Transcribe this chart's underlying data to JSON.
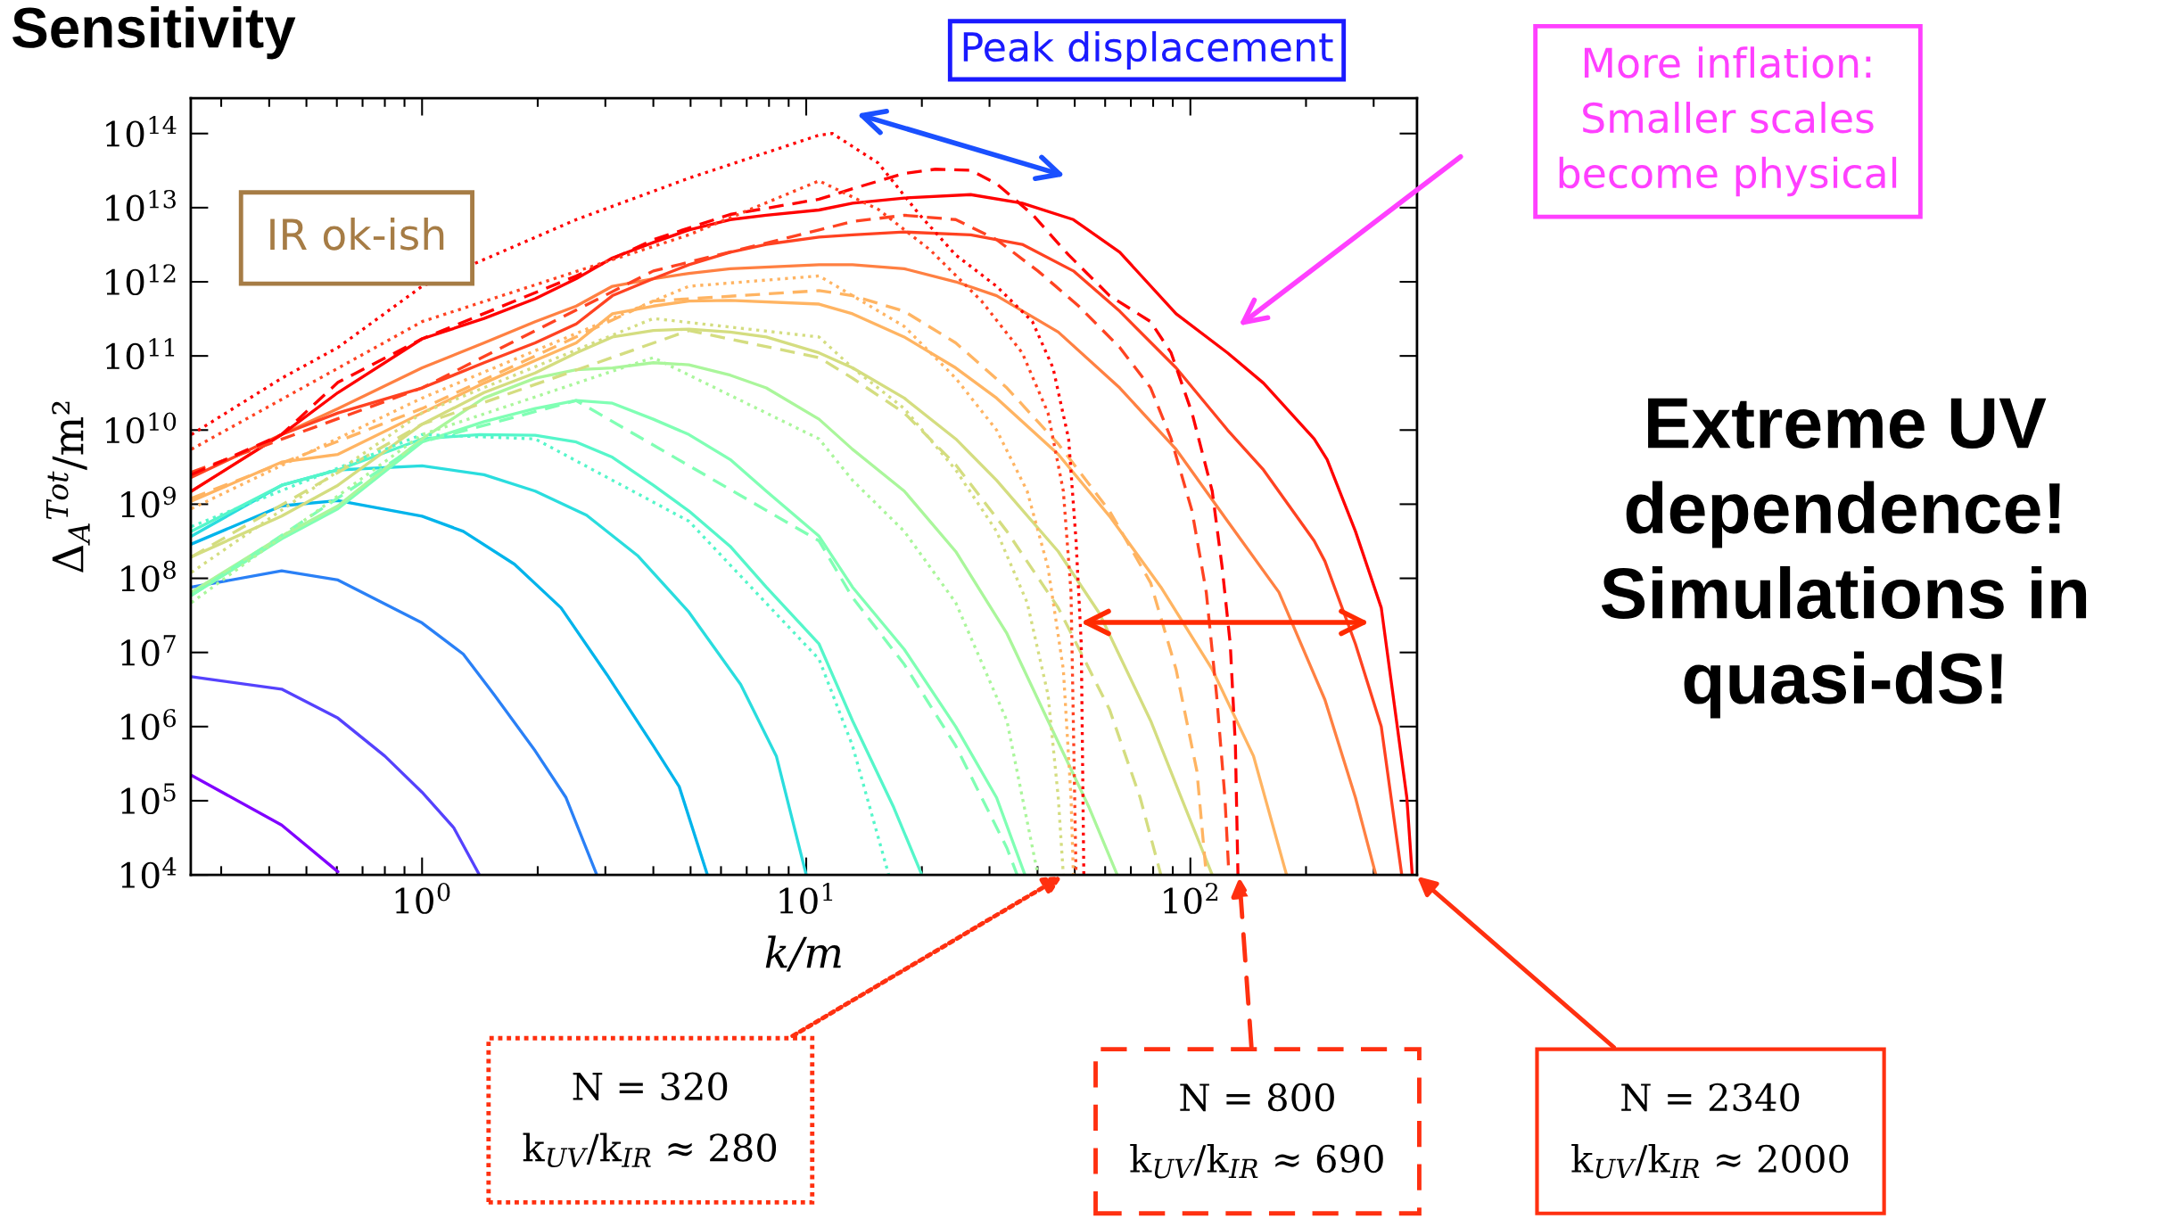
{
  "chart_data": {
    "type": "line",
    "title": "Sensitivity",
    "xlabel": "k/m",
    "ylabel": "Δ$_{A}$$^{Tot}$/m²",
    "log": "xy",
    "xlim": [
      0.25,
      389
    ],
    "ylim": [
      10000,
      300000000000000.0
    ],
    "xticks": [
      {
        "value": 1,
        "label": "10$^{0}$"
      },
      {
        "value": 10,
        "label": "10$^{1}$"
      },
      {
        "value": 100,
        "label": "10$^{2}$"
      }
    ],
    "yticks": [
      {
        "value": 10000.0,
        "label": "10$^{4}$"
      },
      {
        "value": 100000.0,
        "label": "10$^{5}$"
      },
      {
        "value": 1000000.0,
        "label": "10$^{6}$"
      },
      {
        "value": 10000000.0,
        "label": "10$^{7}$"
      },
      {
        "value": 100000000.0,
        "label": "10$^{8}$"
      },
      {
        "value": 1000000000.0,
        "label": "10$^{9}$"
      },
      {
        "value": 10000000000.0,
        "label": "10$^{10}$"
      },
      {
        "value": 100000000000.0,
        "label": "10$^{11}$"
      },
      {
        "value": 1000000000000.0,
        "label": "10$^{12}$"
      },
      {
        "value": 10000000000000.0,
        "label": "10$^{13}$"
      },
      {
        "value": 100000000000000.0,
        "label": "10$^{14}$"
      }
    ],
    "series": [
      {
        "color": "#8000ff",
        "line_style": "solid",
        "x": [
          0.251,
          0.431,
          0.604
        ],
        "values": [
          220000.0,
          47000.0,
          11000.0
        ]
      },
      {
        "color": "#5542fd",
        "line_style": "solid",
        "x": [
          0.251,
          0.431,
          0.604,
          0.8,
          1.0,
          1.21,
          1.41
        ],
        "values": [
          4700000.0,
          3200000.0,
          1300000.0,
          400000.0,
          130000.0,
          43000.0,
          10000.0
        ]
      },
      {
        "color": "#2a80f6",
        "line_style": "solid",
        "x": [
          0.251,
          0.431,
          0.604,
          1.0,
          1.28,
          1.54,
          1.97,
          2.37,
          2.85
        ],
        "values": [
          76000000.0,
          126000000.0,
          95000000.0,
          25000000.0,
          9500000.0,
          2700000.0,
          470000.0,
          110000.0,
          10000.0
        ]
      },
      {
        "color": "#00b4eb",
        "line_style": "solid",
        "x": [
          0.251,
          0.431,
          0.604,
          1.0,
          1.28,
          1.74,
          2.3,
          3.03,
          4.0,
          4.67,
          5.53
        ],
        "values": [
          290000000.0,
          950000000.0,
          1120000000.0,
          690000000.0,
          430000000.0,
          155000000.0,
          40000000.0,
          5000000.0,
          550000.0,
          155000.0,
          10000.0
        ]
      },
      {
        "color": "#2addde",
        "line_style": "solid",
        "x": [
          0.251,
          0.431,
          0.604,
          1.0,
          1.45,
          1.97,
          2.68,
          3.65,
          4.95,
          6.75,
          8.36,
          10.0
        ],
        "values": [
          370000000.0,
          1800000000.0,
          2900000000.0,
          3300000000.0,
          2500000000.0,
          1500000000.0,
          710000000.0,
          200000000.0,
          35000000.0,
          3700000.0,
          400000.0,
          10000.0
        ]
      },
      {
        "color": "#55f6ca",
        "line_style": "solid",
        "x": [
          0.251,
          0.431,
          0.604,
          1.0,
          1.41,
          1.97,
          2.52,
          3.13,
          4.0,
          4.95,
          6.34,
          7.87,
          10.8,
          13.2,
          16.9,
          20.0
        ],
        "values": [
          430000000.0,
          1800000000.0,
          2900000000.0,
          7600000000.0,
          8700000000.0,
          8500000000.0,
          6900000000.0,
          4300000000.0,
          1800000000.0,
          810000000.0,
          270000000.0,
          76000000.0,
          13000000.0,
          1200000.0,
          81000.0,
          10000.0
        ]
      },
      {
        "color": "#80ffb4",
        "line_style": "solid",
        "x": [
          0.251,
          0.431,
          0.604,
          1.0,
          1.45,
          1.97,
          2.52,
          3.13,
          4.0,
          4.95,
          6.34,
          7.87,
          10.8,
          13.2,
          18.0,
          24.5,
          31.3,
          37.1
        ],
        "values": [
          59000000.0,
          340000000.0,
          870000000.0,
          6900000000.0,
          13000000000.0,
          19500000000.0,
          25000000000.0,
          23000000000.0,
          14000000000.0,
          8700000000.0,
          4000000000.0,
          1500000000.0,
          370000000.0,
          76000000.0,
          11000000.0,
          1000000.0,
          110000.0,
          10000.0
        ]
      },
      {
        "color": "#aaf69b",
        "line_style": "solid",
        "x": [
          0.251,
          0.431,
          0.604,
          1.0,
          1.45,
          1.97,
          2.52,
          3.13,
          4.0,
          4.95,
          6.34,
          7.87,
          10.8,
          13.2,
          18.0,
          24.5,
          33.3,
          42.6,
          54.5,
          64.5
        ],
        "values": [
          65000000.0,
          370000000.0,
          950000000.0,
          7600000000.0,
          27000000000.0,
          50000000000.0,
          65000000000.0,
          69000000000.0,
          81000000000.0,
          76000000000.0,
          55000000000.0,
          37000000000.0,
          14000000000.0,
          5500000000.0,
          1500000000.0,
          230000000.0,
          18000000.0,
          1200000.0,
          81000.0,
          10000.0
        ]
      },
      {
        "color": "#d4dd80",
        "line_style": "solid",
        "x": [
          0.251,
          0.431,
          0.604,
          1.0,
          1.45,
          1.97,
          2.52,
          3.13,
          4.0,
          4.95,
          6.34,
          7.87,
          10.8,
          13.2,
          18.0,
          24.5,
          31.3,
          45.3,
          57.9,
          78.8,
          94.7,
          114
        ],
        "values": [
          195000000.0,
          690000000.0,
          1800000000.0,
          12000000000.0,
          32000000000.0,
          59000000000.0,
          110000000000.0,
          180000000000.0,
          220000000000.0,
          230000000000.0,
          210000000000.0,
          180000000000.0,
          110000000000.0,
          69000000000.0,
          27000000000.0,
          7600000000.0,
          2100000000.0,
          230000000.0,
          34000000.0,
          1200000.0,
          110000.0,
          10000.0
        ]
      },
      {
        "color": "#ffb462",
        "line_style": "solid",
        "x": [
          0.251,
          0.431,
          0.604,
          1.0,
          1.45,
          1.97,
          2.52,
          3.13,
          4.0,
          4.95,
          6.34,
          10.8,
          13.2,
          18.0,
          24.5,
          31.3,
          45.3,
          61.6,
          83.8,
          114,
          146,
          178
        ],
        "values": [
          1100000000.0,
          3700000000.0,
          4700000000.0,
          17000000000.0,
          43000000000.0,
          87000000000.0,
          150000000000.0,
          370000000000.0,
          470000000000.0,
          550000000000.0,
          560000000000.0,
          500000000000.0,
          370000000000.0,
          180000000000.0,
          69000000000.0,
          27000000000.0,
          4700000000.0,
          690000000.0,
          76000000.0,
          5900000.0,
          400000.0,
          10000.0
        ]
      },
      {
        "color": "#ff8042",
        "line_style": "solid",
        "x": [
          0.251,
          0.431,
          0.604,
          1.0,
          1.45,
          1.97,
          2.52,
          3.13,
          4.0,
          4.95,
          6.34,
          10.8,
          13.2,
          18.0,
          24.5,
          31.3,
          45.3,
          65.5,
          91.8,
          125,
          170,
          224,
          269,
          304
        ],
        "values": [
          1500000000.0,
          8700000000.0,
          19500000000.0,
          69000000000.0,
          150000000000.0,
          290000000000.0,
          470000000000.0,
          870000000000.0,
          1100000000000.0,
          1300000000000.0,
          1500000000000.0,
          1700000000000.0,
          1700000000000.0,
          1500000000000.0,
          1000000000000.0,
          650000000000.0,
          210000000000.0,
          37000000000.0,
          5500000000.0,
          590000000.0,
          65000000.0,
          2300000.0,
          110000.0,
          10000.0
        ]
      },
      {
        "color": "#ff4221",
        "line_style": "solid",
        "x": [
          0.251,
          0.431,
          0.604,
          1.0,
          1.45,
          1.97,
          2.52,
          3.13,
          4.0,
          4.95,
          6.34,
          7.87,
          10.8,
          13.2,
          18.0,
          26.8,
          36.5,
          49.6,
          65.5,
          91.8,
          125,
          155,
          210,
          224,
          269,
          314,
          355
        ],
        "values": [
          2300000000.0,
          8700000000.0,
          17000000000.0,
          37000000000.0,
          81000000000.0,
          150000000000.0,
          270000000000.0,
          650000000000.0,
          1100000000000.0,
          1700000000000.0,
          2500000000000.0,
          3200000000000.0,
          4000000000000.0,
          4300000000000.0,
          4700000000000.0,
          4300000000000.0,
          3200000000000.0,
          1400000000000.0,
          400000000000.0,
          69000000000.0,
          10000000000.0,
          2900000000.0,
          320000000.0,
          170000000.0,
          13000000.0,
          1000000.0,
          10000.0
        ]
      },
      {
        "color": "#ff0000",
        "line_style": "solid",
        "x": [
          0.251,
          0.431,
          0.604,
          1.0,
          1.45,
          1.97,
          2.52,
          3.13,
          4.0,
          4.95,
          6.34,
          7.87,
          10.8,
          13.2,
          18.0,
          26.8,
          36.5,
          49.6,
          65.5,
          91.8,
          125,
          155,
          210,
          227,
          269,
          314,
          344,
          366,
          378
        ],
        "values": [
          1500000000.0,
          8700000000.0,
          32000000000.0,
          170000000000.0,
          320000000000.0,
          590000000000.0,
          1100000000000.0,
          2100000000000.0,
          3400000000000.0,
          5000000000000.0,
          6900000000000.0,
          7900000000000.0,
          9300000000000.0,
          11500000000000.0,
          13500000000000.0,
          15000000000000.0,
          11500000000000.0,
          6900000000000.0,
          2500000000000.0,
          370000000000.0,
          110000000000.0,
          43000000000.0,
          7600000000.0,
          4000000000.0,
          430000000.0,
          40000000.0,
          1200000.0,
          110000.0,
          10000.0
        ]
      },
      {
        "color": "#80ffb4",
        "line_style": "dashed",
        "x": [
          0.251,
          1.0,
          2.52,
          10.8,
          13.2,
          18.0,
          24.5,
          33.3,
          35.4
        ],
        "values": [
          59000000.0,
          6900000000.0,
          25000000000.0,
          320000000.0,
          55000000.0,
          6900000.0,
          550000.0,
          23000.0,
          10000.0
        ]
      },
      {
        "color": "#d4dd80",
        "line_style": "dashed",
        "x": [
          0.251,
          1.0,
          4.95,
          10.8,
          13.2,
          18.0,
          24.5,
          33.3,
          45.3,
          61.6,
          74.0,
          83.8
        ],
        "values": [
          195000000.0,
          12000000000.0,
          220000000000.0,
          95000000000.0,
          50000000000.0,
          17000000000.0,
          3400000000.0,
          430000000.0,
          40000000.0,
          1700000.0,
          110000.0,
          10000.0
        ]
      },
      {
        "color": "#ffb462",
        "line_style": "dashed",
        "x": [
          0.251,
          1.0,
          4.0,
          10.8,
          13.2,
          18.0,
          24.5,
          33.3,
          45.3,
          61.6,
          78.8,
          91.8,
          104,
          110
        ],
        "values": [
          1200000000.0,
          19500000000.0,
          550000000000.0,
          760000000000.0,
          650000000000.0,
          400000000000.0,
          150000000000.0,
          37000000000.0,
          6500000000.0,
          810000000.0,
          87000000.0,
          5900000.0,
          250000.0,
          10000.0
        ]
      },
      {
        "color": "#ff4221",
        "line_style": "dashed",
        "x": [
          0.251,
          1.0,
          4.0,
          10.8,
          13.2,
          18.0,
          24.5,
          31.3,
          40.1,
          51.2,
          65.5,
          78.8,
          89.1,
          101,
          110,
          117,
          123,
          126
        ],
        "values": [
          2700000000.0,
          37000000000.0,
          1400000000000.0,
          5000000000000.0,
          6500000000000.0,
          7900000000000.0,
          6900000000000.0,
          3700000000000.0,
          1400000000000.0,
          470000000000.0,
          130000000000.0,
          37000000000.0,
          7600000000.0,
          810000000.0,
          65000000.0,
          2700000.0,
          110000.0,
          10000.0
        ]
      },
      {
        "color": "#ff0000",
        "line_style": "dashed",
        "x": [
          0.251,
          0.431,
          0.604,
          1.0,
          2.52,
          4.0,
          6.34,
          10.8,
          13.2,
          18.0,
          21.7,
          26.8,
          31.3,
          38.8,
          48.2,
          61.6,
          78.8,
          89.1,
          101,
          114,
          121,
          127,
          131,
          133
        ],
        "values": [
          2500000000.0,
          8700000000.0,
          44000000000.0,
          170000000000.0,
          1200000000000.0,
          3700000000000.0,
          8100000000000.0,
          13000000000000.0,
          18000000000000.0,
          29000000000000.0,
          33000000000000.0,
          32000000000000.0,
          21000000000000.0,
          8100000000000.0,
          2300000000000.0,
          650000000000.0,
          290000000000.0,
          110000000000.0,
          17000000000.0,
          1500000000.0,
          140000000.0,
          13000000.0,
          550000.0,
          10000.0
        ]
      },
      {
        "color": "#55f6ca",
        "line_style": "dotted",
        "x": [
          0.251,
          1.0,
          1.97,
          4.95,
          10.8,
          13.2,
          16.4
        ],
        "values": [
          500000000.0,
          8700000000.0,
          7600000000.0,
          590000000.0,
          8100000.0,
          550000.0,
          10000.0
        ]
      },
      {
        "color": "#aaf69b",
        "line_style": "dotted",
        "x": [
          0.251,
          1.0,
          4.0,
          10.8,
          13.2,
          18.0,
          24.5,
          33.3,
          40.1
        ],
        "values": [
          47000000.0,
          8700000000.0,
          95000000000.0,
          7600000000.0,
          2100000000.0,
          430000000.0,
          47000000.0,
          1200000.0,
          10000.0
        ]
      },
      {
        "color": "#d4dd80",
        "line_style": "dotted",
        "x": [
          0.251,
          1.0,
          4.0,
          10.8,
          13.2,
          18.0,
          24.5,
          31.3,
          37.6,
          42.6,
          45.3,
          46.7
        ],
        "values": [
          120000000.0,
          17000000000.0,
          320000000000.0,
          180000000000.0,
          69000000000.0,
          19500000000.0,
          2900000000.0,
          430000000.0,
          47000000.0,
          2700000.0,
          110000.0,
          10000.0
        ]
      },
      {
        "color": "#ffb462",
        "line_style": "dotted",
        "x": [
          0.251,
          1.0,
          4.95,
          10.8,
          13.2,
          18.0,
          24.5,
          31.3,
          37.6,
          42.6,
          46.7,
          48.9,
          49.6
        ],
        "values": [
          870000000.0,
          27000000000.0,
          870000000000.0,
          1200000000000.0,
          650000000000.0,
          250000000000.0,
          50000000000.0,
          10000000000.0,
          1500000000.0,
          140000000.0,
          5900000.0,
          110000.0,
          10000.0
        ]
      },
      {
        "color": "#ff4221",
        "line_style": "dotted",
        "x": [
          0.251,
          1.0,
          4.95,
          10.8,
          15.4,
          21.0,
          28.6,
          36.5,
          42.6,
          46.7,
          48.9,
          50.4
        ],
        "values": [
          5500000000.0,
          290000000000.0,
          4300000000000.0,
          23000000000000.0,
          9500000000000.0,
          2700000000000.0,
          550000000000.0,
          110000000000.0,
          17000000000.0,
          1500000000.0,
          65000000.0,
          10000.0
        ]
      },
      {
        "color": "#ff0000",
        "line_style": "dotted",
        "x": [
          0.251,
          0.431,
          0.604,
          1.0,
          2.52,
          4.95,
          10.8,
          11.7,
          15.4,
          19.7,
          24.5,
          31.3,
          38.8,
          43.9,
          48.2,
          50.4,
          52.0,
          52.8
        ],
        "values": [
          8700000000.0,
          50000000000.0,
          130000000000.0,
          870000000000.0,
          6900000000000.0,
          25000000000000.0,
          95000000000000.0,
          100000000000000.0,
          40000000000000.0,
          8100000000000.0,
          2300000000000.0,
          870000000000.0,
          290000000000.0,
          69000000000.0,
          7600000000.0,
          320000000.0,
          13000000.0,
          10000.0
        ]
      }
    ],
    "annotations": [
      "IR ok-ish",
      "Peak displacement",
      "More inflation:\nSmaller scales\nbecome physical",
      "Extreme UV\ndependence!\nSimulations in\nquasi-dS!",
      {
        "text": "N = 320\nk$_{UV}$/k$_{IR}$ ≈ 280",
        "x": 47,
        "y": 10000
      },
      {
        "text": "N = 800\nk$_{UV}$/k$_{IR}$ ≈ 690",
        "x": 134,
        "y": 10000
      },
      {
        "text": "N = 2340\nk$_{UV}$/k$_{IR}$ ≈ 2000",
        "x": 385,
        "y": 10000
      }
    ]
  }
}
